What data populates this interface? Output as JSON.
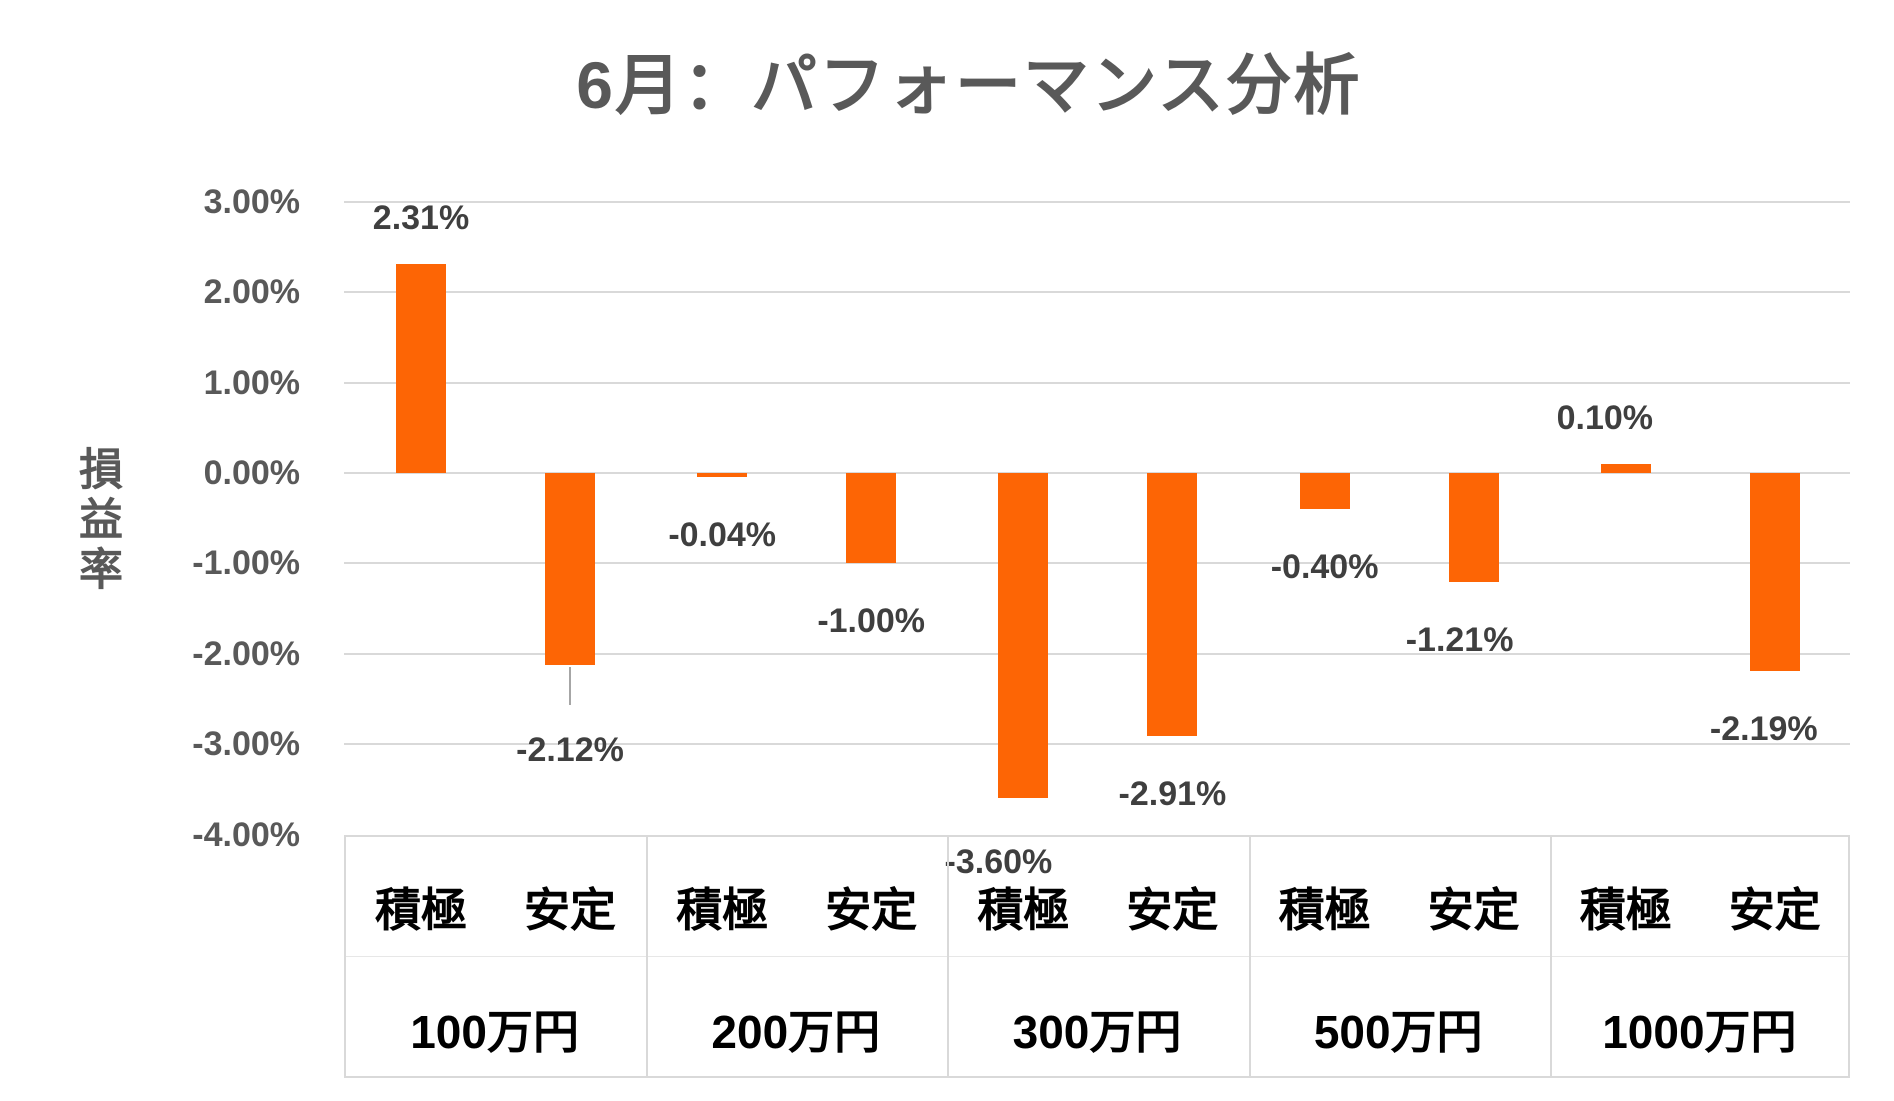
{
  "chart_data": {
    "type": "bar",
    "title": "6月：パフォーマンス分析",
    "ylabel": "損益率",
    "legend_position": "none",
    "grid": true,
    "ylim": [
      -4,
      3
    ],
    "bar_color": "#FD6505",
    "grid_color": "#D9D9D9",
    "tick_color": "#595959",
    "data_label_color": "#3F3F3F",
    "category_color": "#000000",
    "y_ticks": [
      {
        "value": 3,
        "label": "3.00%"
      },
      {
        "value": 2,
        "label": "2.00%"
      },
      {
        "value": 1,
        "label": "1.00%"
      },
      {
        "value": 0,
        "label": "0.00%"
      },
      {
        "value": -1,
        "label": "-1.00%"
      },
      {
        "value": -2,
        "label": "-2.00%"
      },
      {
        "value": -3,
        "label": "-3.00%"
      },
      {
        "value": -4,
        "label": "-4.00%"
      }
    ],
    "sub_categories": [
      "積極",
      "安定"
    ],
    "groups": [
      {
        "category": "100万円",
        "bars": [
          {
            "name": "積極",
            "value": 2.31,
            "label": "2.31%"
          },
          {
            "name": "安定",
            "value": -2.12,
            "label": "-2.12%",
            "leader_line": true,
            "label_dy": 27
          }
        ]
      },
      {
        "category": "200万円",
        "bars": [
          {
            "name": "積極",
            "value": -0.04,
            "label": "-0.04%"
          },
          {
            "name": "安定",
            "value": -1.0,
            "label": "-1.00%"
          }
        ]
      },
      {
        "category": "300万円",
        "bars": [
          {
            "name": "積極",
            "value": -3.6,
            "label": "-3.60%",
            "label_dx": -25,
            "label_dy": 6
          },
          {
            "name": "安定",
            "value": -2.91,
            "label": "-2.91%"
          }
        ]
      },
      {
        "category": "500万円",
        "bars": [
          {
            "name": "積極",
            "value": -0.4,
            "label": "-0.40%"
          },
          {
            "name": "安定",
            "value": -1.21,
            "label": "-1.21%",
            "label_dx": -14
          }
        ]
      },
      {
        "category": "1000万円",
        "bars": [
          {
            "name": "積極",
            "value": 0.1,
            "label": "0.10%",
            "label_dx": -21
          },
          {
            "name": "安定",
            "value": -2.19,
            "label": "-2.19%",
            "label_dx": -11
          }
        ]
      }
    ]
  }
}
